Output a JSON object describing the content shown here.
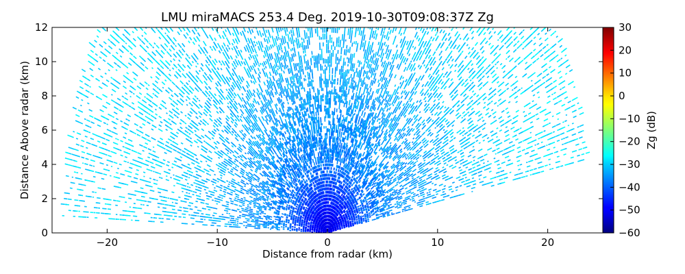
{
  "chart_data": {
    "type": "heatmap",
    "title": "LMU miraMACS 253.4 Deg. 2019-10-30T09:08:37Z  Zg",
    "xlabel": "Distance from radar (km)",
    "ylabel": "Distance Above radar  (km)",
    "xlim": [
      -25,
      25
    ],
    "ylim": [
      0,
      12
    ],
    "xticks": [
      -20,
      -10,
      0,
      10,
      20
    ],
    "yticks": [
      0,
      2,
      4,
      6,
      8,
      10,
      12
    ],
    "grid": false,
    "colorbar": {
      "label": "Zg (dB)",
      "range": [
        -60,
        30
      ],
      "ticks": [
        30,
        20,
        10,
        0,
        -10,
        -20,
        -30,
        -40,
        -50,
        -60
      ],
      "colormap": "jet"
    },
    "scan": {
      "type": "RHI",
      "max_range_km": 24,
      "left_edge_elevation_deg": 2,
      "right_edge_elevation_deg": 10,
      "azimuth_deg": 253.4
    },
    "reflectivity_profile": [
      {
        "range_km": 0.5,
        "zg_db": -50
      },
      {
        "range_km": 2,
        "zg_db": -45
      },
      {
        "range_km": 4,
        "zg_db": -38
      },
      {
        "range_km": 6,
        "zg_db": -36
      },
      {
        "range_km": 9,
        "zg_db": -34
      },
      {
        "range_km": 13,
        "zg_db": -31
      },
      {
        "range_km": 18,
        "zg_db": -29
      },
      {
        "range_km": 24,
        "zg_db": -29
      }
    ]
  }
}
